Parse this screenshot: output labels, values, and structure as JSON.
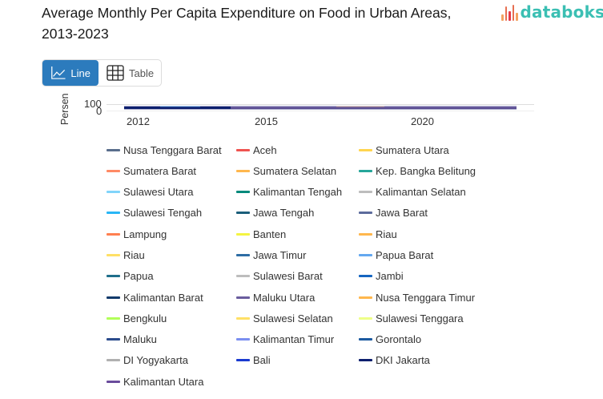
{
  "header": {
    "title": "Average Monthly Per Capita Expenditure on Food in Urban Areas, 2013-2023",
    "brand": "databoks",
    "brand_color": "#3bbfb3"
  },
  "view_toggle": {
    "line_label": "Line",
    "line_icon": "line-chart-icon",
    "table_label": "Table",
    "table_icon": "table-grid-icon",
    "active": "Line",
    "active_color": "#2c7bbd"
  },
  "chart_data": {
    "type": "line",
    "title": "Average Monthly Per Capita Expenditure on Food in Urban Areas, 2013-2023",
    "xlabel": "",
    "ylabel": "Persen",
    "x_ticks": [
      "2012",
      "2015",
      "2020"
    ],
    "y_ticks": [
      "0",
      "100"
    ],
    "ylim": [
      0,
      100
    ],
    "xlim": [
      2011.8,
      2023.8
    ],
    "x": [
      2013,
      2014,
      2015,
      2016,
      2017,
      2018,
      2019,
      2020,
      2021,
      2022,
      2023
    ],
    "grid": true,
    "legend_position": "bottom",
    "note": "Plot area is vertically compressed; all series overlap near the 0 baseline and individual values are not legible.",
    "series": [
      {
        "name": "Nusa Tenggara Barat",
        "color": "#5a6e8c"
      },
      {
        "name": "Aceh",
        "color": "#ef5350"
      },
      {
        "name": "Sumatera Utara",
        "color": "#ffd54f"
      },
      {
        "name": "Sumatera Barat",
        "color": "#ff8a65"
      },
      {
        "name": "Sumatera Selatan",
        "color": "#ffb74d"
      },
      {
        "name": "Kep. Bangka Belitung",
        "color": "#26a69a"
      },
      {
        "name": "Sulawesi Utara",
        "color": "#81d4fa"
      },
      {
        "name": "Kalimantan Tengah",
        "color": "#00897b"
      },
      {
        "name": "Kalimantan Selatan",
        "color": "#bdbdbd"
      },
      {
        "name": "Sulawesi Tengah",
        "color": "#29b6f6"
      },
      {
        "name": "Jawa Tengah",
        "color": "#1b5e7a"
      },
      {
        "name": "Jawa Barat",
        "color": "#5c6b9c"
      },
      {
        "name": "Lampung",
        "color": "#ff7f50"
      },
      {
        "name": "Banten",
        "color": "#f4f442"
      },
      {
        "name": "Riau",
        "color": "#ffb74d"
      },
      {
        "name": "Riau",
        "color": "#ffe066"
      },
      {
        "name": "Jawa Timur",
        "color": "#2e6da4"
      },
      {
        "name": "Papua Barat",
        "color": "#64a8f0"
      },
      {
        "name": "Papua",
        "color": "#1f6f8b"
      },
      {
        "name": "Sulawesi Barat",
        "color": "#bdbdbd"
      },
      {
        "name": "Jambi",
        "color": "#1565c0"
      },
      {
        "name": "Kalimantan Barat",
        "color": "#123a6b"
      },
      {
        "name": "Maluku Utara",
        "color": "#6a5d9e"
      },
      {
        "name": "Nusa Tenggara Timur",
        "color": "#ffb74d"
      },
      {
        "name": "Bengkulu",
        "color": "#b2ff59"
      },
      {
        "name": "Sulawesi Selatan",
        "color": "#ffe066"
      },
      {
        "name": "Sulawesi Tenggara",
        "color": "#eeff88"
      },
      {
        "name": "Maluku",
        "color": "#2b4c8c"
      },
      {
        "name": "Kalimantan Timur",
        "color": "#7b8ff0"
      },
      {
        "name": "Gorontalo",
        "color": "#1c5aa0"
      },
      {
        "name": "DI Yogyakarta",
        "color": "#b0b0b0"
      },
      {
        "name": "Bali",
        "color": "#1a3ad0"
      },
      {
        "name": "DKI Jakarta",
        "color": "#0d1f6e"
      },
      {
        "name": "Kalimantan Utara",
        "color": "#6a4c9c"
      }
    ]
  },
  "legend": {
    "rows": [
      [
        {
          "label": "Nusa Tenggara Barat",
          "color": "#5a6e8c"
        },
        {
          "label": "Aceh",
          "color": "#ef5350"
        },
        {
          "label": "Sumatera Utara",
          "color": "#ffd54f"
        }
      ],
      [
        {
          "label": "Sumatera Barat",
          "color": "#ff8a65"
        },
        {
          "label": "Sumatera Selatan",
          "color": "#ffb74d"
        },
        {
          "label": "Kep. Bangka Belitung",
          "color": "#26a69a"
        }
      ],
      [
        {
          "label": "Sulawesi Utara",
          "color": "#81d4fa"
        },
        {
          "label": "Kalimantan Tengah",
          "color": "#00897b"
        },
        {
          "label": "Kalimantan Selatan",
          "color": "#bdbdbd"
        }
      ],
      [
        {
          "label": "Sulawesi Tengah",
          "color": "#29b6f6"
        },
        {
          "label": "Jawa Tengah",
          "color": "#1b5e7a"
        },
        {
          "label": "Jawa Barat",
          "color": "#5c6b9c"
        }
      ],
      [
        {
          "label": "Lampung",
          "color": "#ff7f50"
        },
        {
          "label": "Banten",
          "color": "#f4f442"
        },
        {
          "label": "Riau",
          "color": "#ffb74d"
        }
      ],
      [
        {
          "label": "Riau",
          "color": "#ffe066"
        },
        {
          "label": "Jawa Timur",
          "color": "#2e6da4"
        },
        {
          "label": "Papua Barat",
          "color": "#64a8f0"
        }
      ],
      [
        {
          "label": "Papua",
          "color": "#1f6f8b"
        },
        {
          "label": "Sulawesi Barat",
          "color": "#bdbdbd"
        },
        {
          "label": "Jambi",
          "color": "#1565c0"
        }
      ],
      [
        {
          "label": "Kalimantan Barat",
          "color": "#123a6b"
        },
        {
          "label": "Maluku Utara",
          "color": "#6a5d9e"
        },
        {
          "label": "Nusa Tenggara Timur",
          "color": "#ffb74d"
        }
      ],
      [
        {
          "label": "Bengkulu",
          "color": "#b2ff59"
        },
        {
          "label": "Sulawesi Selatan",
          "color": "#ffe066"
        },
        {
          "label": "Sulawesi Tenggara",
          "color": "#eeff88"
        }
      ],
      [
        {
          "label": "Maluku",
          "color": "#2b4c8c"
        },
        {
          "label": "Kalimantan Timur",
          "color": "#7b8ff0"
        },
        {
          "label": "Gorontalo",
          "color": "#1c5aa0"
        }
      ],
      [
        {
          "label": "DI Yogyakarta",
          "color": "#b0b0b0"
        },
        {
          "label": "Bali",
          "color": "#1a3ad0"
        },
        {
          "label": "DKI Jakarta",
          "color": "#0d1f6e"
        }
      ],
      [
        {
          "label": "Kalimantan Utara",
          "color": "#6a4c9c"
        }
      ]
    ]
  }
}
